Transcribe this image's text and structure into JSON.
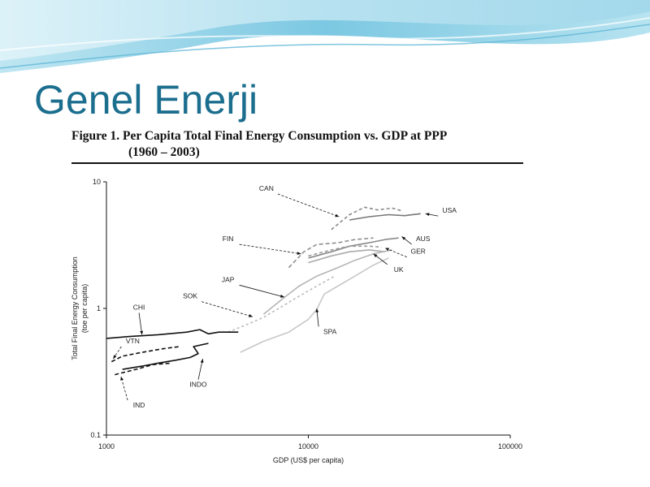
{
  "slide": {
    "title": "Genel Enerji"
  },
  "figure": {
    "caption_line1": "Figure 1. Per Capita Total Final Energy Consumption vs. GDP at PPP",
    "caption_line2": "(1960 – 2003)"
  },
  "chart_data": {
    "type": "line",
    "xlabel": "GDP (US$ per capita)",
    "ylabel": "Total Final Energy Consumption",
    "ylabel2": "(toe per capita)",
    "xscale": "log",
    "yscale": "log",
    "xlim": [
      1000,
      100000
    ],
    "ylim": [
      0.1,
      10
    ],
    "xticks": [
      {
        "value": 1000,
        "label": "1000"
      },
      {
        "value": 10000,
        "label": "10000"
      },
      {
        "value": 100000,
        "label": "100000"
      }
    ],
    "yticks": [
      {
        "value": 0.1,
        "label": "0.1"
      },
      {
        "value": 1,
        "label": "1"
      },
      {
        "value": 10,
        "label": "10"
      }
    ],
    "grid": false,
    "series": [
      {
        "name": "USA",
        "color": "#777777",
        "dash": "",
        "x": [
          16000,
          20000,
          25000,
          30000,
          36000
        ],
        "y": [
          5.0,
          5.3,
          5.5,
          5.4,
          5.6
        ],
        "label_x": 50000,
        "label_y": 5.7,
        "arrow_x": 38000,
        "arrow_y": 5.6
      },
      {
        "name": "CAN",
        "color": "#888888",
        "dash": "4,3",
        "x": [
          13000,
          16000,
          19000,
          22000,
          26000,
          29000
        ],
        "y": [
          4.2,
          5.5,
          6.3,
          6.0,
          6.2,
          5.9
        ],
        "label_x": 6200,
        "label_y": 8.5,
        "arrow_x": 14200,
        "arrow_y": 5.3
      },
      {
        "name": "AUS",
        "color": "#8a8a8a",
        "dash": "",
        "x": [
          10000,
          13000,
          16000,
          20000,
          24000,
          28000
        ],
        "y": [
          2.5,
          2.8,
          3.1,
          3.3,
          3.5,
          3.6
        ],
        "label_x": 37000,
        "label_y": 3.4,
        "arrow_x": 29000,
        "arrow_y": 3.7
      },
      {
        "name": "FIN",
        "color": "#8f8f8f",
        "dash": "5,3",
        "x": [
          8000,
          9500,
          11000,
          14000,
          17000,
          21000
        ],
        "y": [
          2.1,
          2.8,
          3.2,
          3.3,
          3.5,
          3.6
        ],
        "label_x": 4000,
        "label_y": 3.4,
        "arrow_x": 9200,
        "arrow_y": 2.7
      },
      {
        "name": "GER",
        "color": "#999999",
        "dash": "4,3",
        "x": [
          10000,
          13000,
          16000,
          20000,
          23000
        ],
        "y": [
          2.6,
          2.9,
          3.1,
          3.1,
          3.05
        ],
        "label_x": 35000,
        "label_y": 2.7,
        "arrow_x": 24000,
        "arrow_y": 3.0
      },
      {
        "name": "UK",
        "color": "#aaaaaa",
        "dash": "",
        "x": [
          10000,
          13000,
          16000,
          20000,
          24000
        ],
        "y": [
          2.3,
          2.6,
          2.8,
          2.9,
          2.8
        ],
        "label_x": 28000,
        "label_y": 1.95,
        "arrow_x": 21000,
        "arrow_y": 2.7
      },
      {
        "name": "JAP",
        "color": "#b5b5b5",
        "dash": "",
        "x": [
          6000,
          7500,
          9000,
          11000,
          14000,
          17000,
          21000,
          26000
        ],
        "y": [
          0.9,
          1.2,
          1.5,
          1.8,
          2.1,
          2.4,
          2.7,
          2.9
        ],
        "label_x": 4000,
        "label_y": 1.62,
        "arrow_x": 7600,
        "arrow_y": 1.23
      },
      {
        "name": "SOK",
        "color": "#bbbbbb",
        "dash": "3,3",
        "x": [
          4000,
          5000,
          6000,
          7500,
          9000,
          11000,
          13500
        ],
        "y": [
          0.65,
          0.75,
          0.85,
          1.05,
          1.25,
          1.5,
          1.8
        ],
        "label_x": 2600,
        "label_y": 1.2,
        "arrow_x": 5300,
        "arrow_y": 0.86
      },
      {
        "name": "SPA",
        "color": "#c8c8c8",
        "dash": "",
        "x": [
          4600,
          6000,
          8000,
          10000,
          11000,
          12000,
          14000,
          17000,
          21000,
          25000
        ],
        "y": [
          0.45,
          0.55,
          0.65,
          0.82,
          0.98,
          1.3,
          1.5,
          1.8,
          2.2,
          2.5
        ],
        "label_x": 12800,
        "label_y": 0.63,
        "arrow_x": 11000,
        "arrow_y": 1.0
      },
      {
        "name": "CHI",
        "color": "#111111",
        "dash": "",
        "x": [
          1000,
          1300,
          1800,
          2500,
          2900,
          3200,
          3600,
          4500
        ],
        "y": [
          0.58,
          0.6,
          0.62,
          0.65,
          0.68,
          0.63,
          0.65,
          0.65
        ],
        "label_x": 1450,
        "label_y": 0.98,
        "arrow_x": 1500,
        "arrow_y": 0.62
      },
      {
        "name": "VTN",
        "color": "#111111",
        "dash": "5,3",
        "x": [
          1060,
          1200,
          1500,
          1900,
          2300
        ],
        "y": [
          0.38,
          0.42,
          0.45,
          0.48,
          0.5
        ],
        "label_x": 1350,
        "label_y": 0.53,
        "arrow_x": 1080,
        "arrow_y": 0.4
      },
      {
        "name": "INDO",
        "color": "#111111",
        "dash": "",
        "x": [
          1200,
          1500,
          1800,
          2200,
          2600,
          2850,
          2700,
          3200
        ],
        "y": [
          0.33,
          0.35,
          0.37,
          0.39,
          0.41,
          0.44,
          0.5,
          0.53
        ],
        "label_x": 2850,
        "label_y": 0.24,
        "arrow_x": 3000,
        "arrow_y": 0.4
      },
      {
        "name": "IND",
        "color": "#111111",
        "dash": "5,3",
        "x": [
          1100,
          1400,
          1700,
          2100
        ],
        "y": [
          0.3,
          0.33,
          0.36,
          0.37
        ],
        "label_x": 1450,
        "label_y": 0.165,
        "arrow_x": 1180,
        "arrow_y": 0.29
      }
    ]
  }
}
